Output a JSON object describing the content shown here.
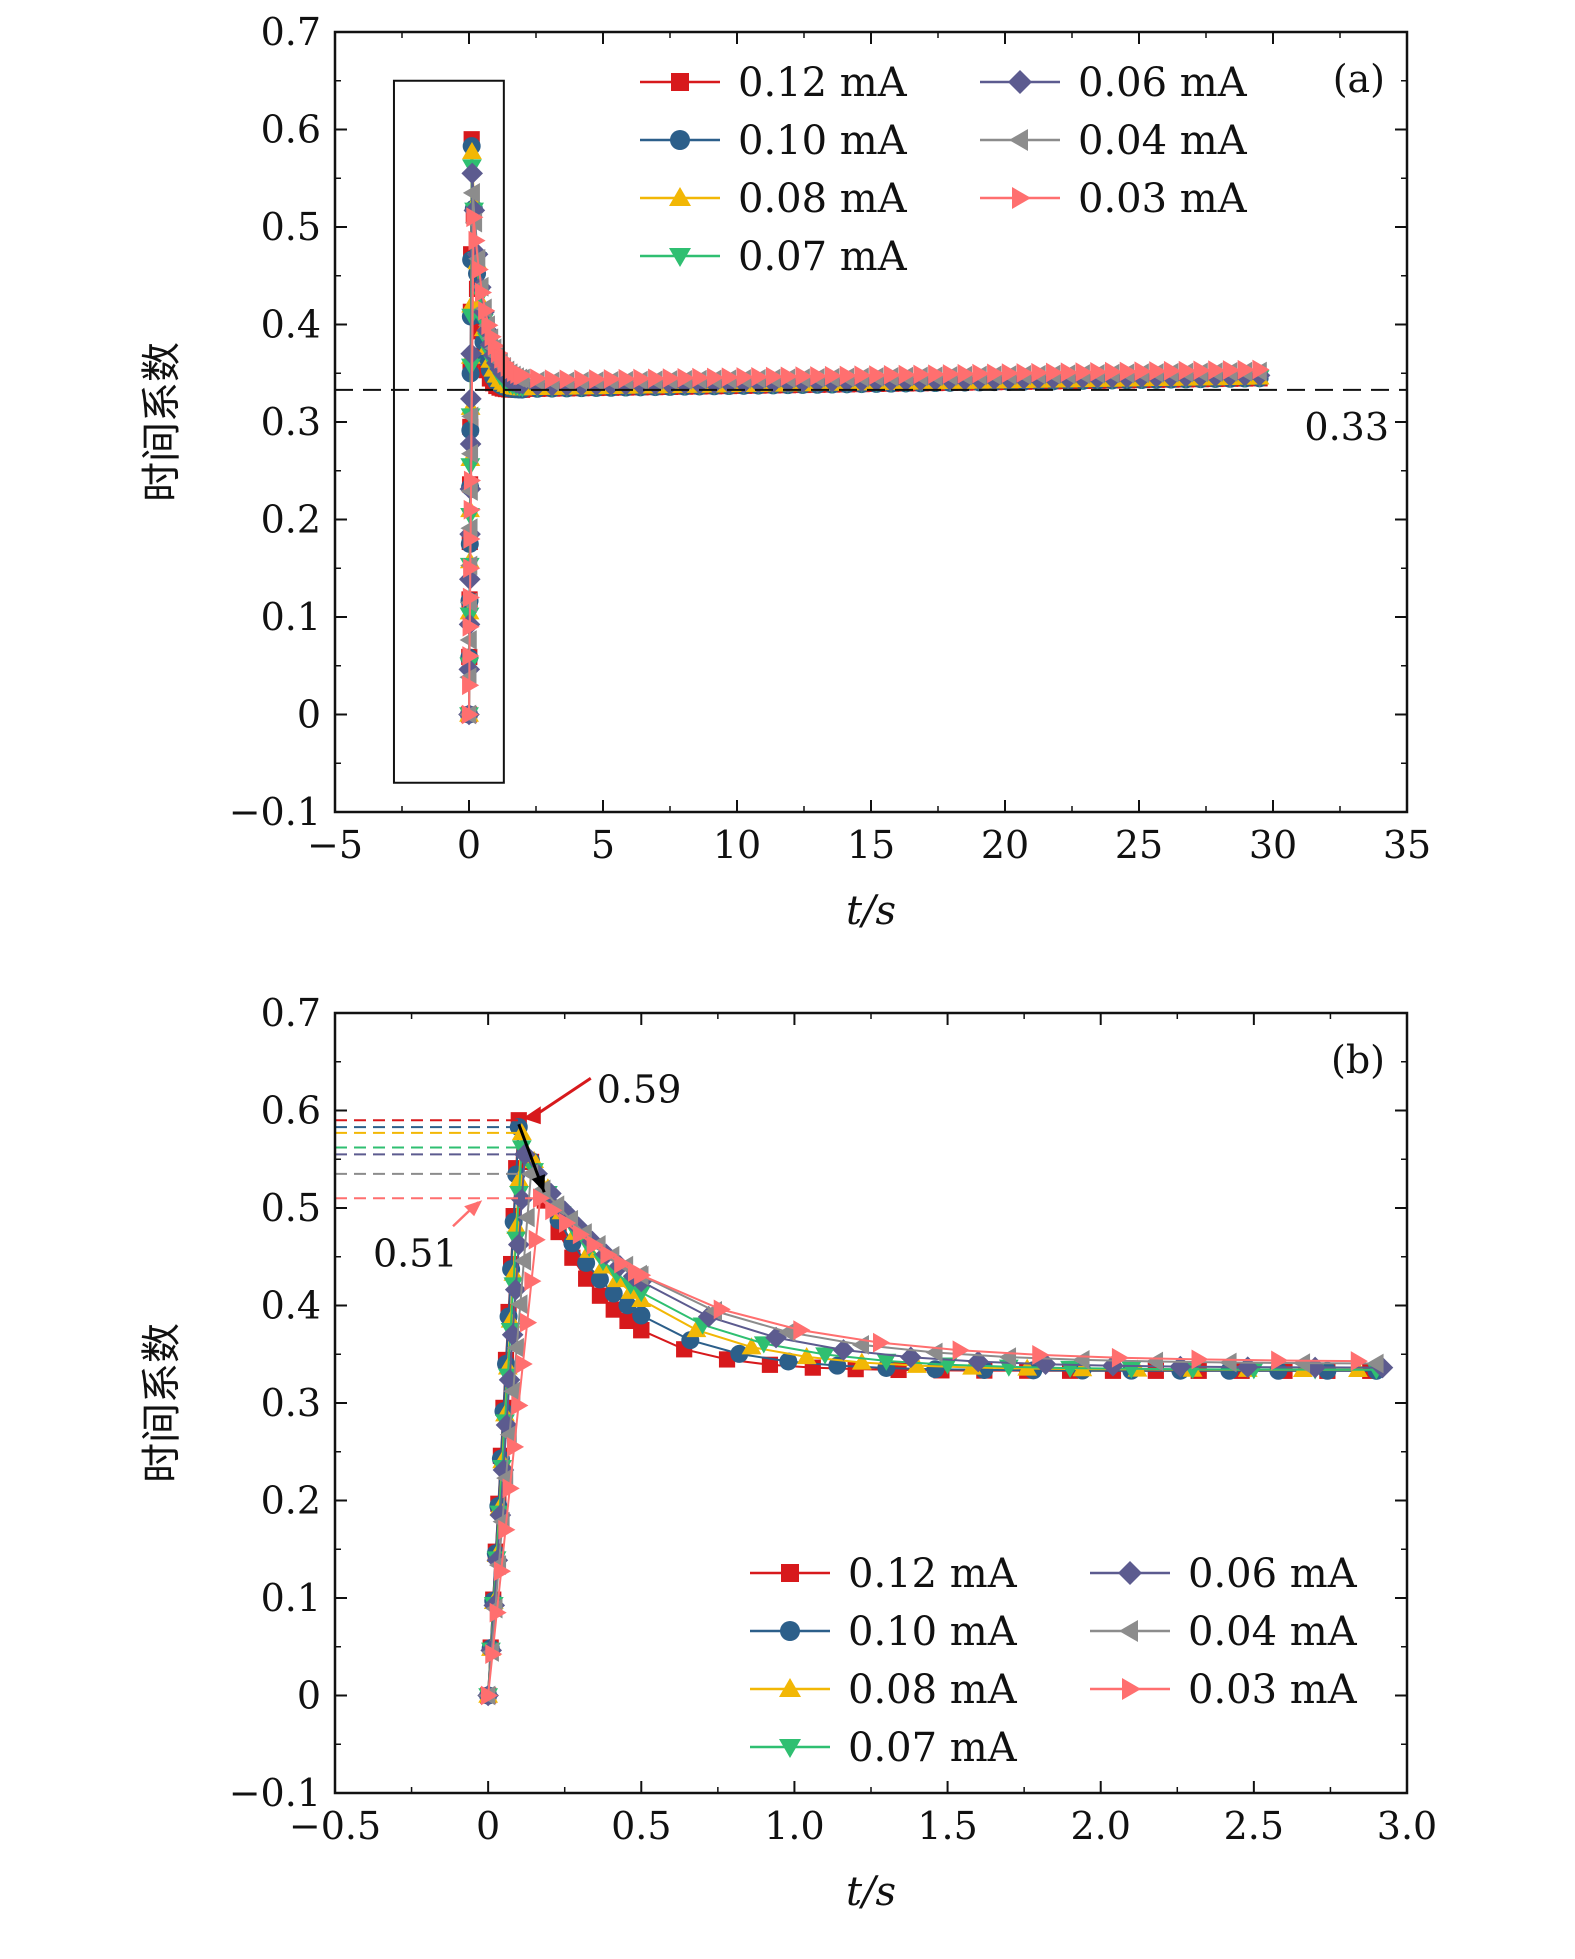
{
  "chart_data": [
    {
      "type": "line",
      "panel_label": "(a)",
      "xlabel": "t/s",
      "ylabel": "时间系数",
      "xlim": [
        -5,
        35
      ],
      "ylim": [
        -0.1,
        0.7
      ],
      "xticks": [
        -5,
        0,
        5,
        10,
        15,
        20,
        25,
        30,
        35
      ],
      "xtick_labels": [
        "−5",
        "0",
        "5",
        "10",
        "15",
        "20",
        "25",
        "30",
        "35"
      ],
      "yticks": [
        -0.1,
        0,
        0.1,
        0.2,
        0.3,
        0.4,
        0.5,
        0.6,
        0.7
      ],
      "ytick_labels": [
        "−0.1",
        "0",
        "0.1",
        "0.2",
        "0.3",
        "0.4",
        "0.5",
        "0.6",
        "0.7"
      ],
      "legend_position": "top-right",
      "legend_columns": 2,
      "reference_line": {
        "y": 0.333,
        "label": "0.33",
        "style": "dashed"
      },
      "highlight_box": {
        "x": [
          -2.8,
          1.3
        ],
        "y": [
          -0.07,
          0.65
        ]
      },
      "series": [
        {
          "name": "0.12 mA",
          "color": "#d7191c",
          "marker": "square",
          "peak": 0.59,
          "peak_t": 0.1,
          "plateau": 0.333
        },
        {
          "name": "0.10 mA",
          "color": "#2c5f8a",
          "marker": "circle",
          "peak": 0.583,
          "peak_t": 0.1,
          "plateau": 0.333
        },
        {
          "name": "0.08 mA",
          "color": "#f2b705",
          "marker": "triangle-up",
          "peak": 0.577,
          "peak_t": 0.11,
          "plateau": 0.334
        },
        {
          "name": "0.07 mA",
          "color": "#2fbf71",
          "marker": "triangle-down",
          "peak": 0.562,
          "peak_t": 0.11,
          "plateau": 0.334
        },
        {
          "name": "0.06 mA",
          "color": "#5c5b8f",
          "marker": "diamond",
          "peak": 0.555,
          "peak_t": 0.12,
          "plateau": 0.336
        },
        {
          "name": "0.04 mA",
          "color": "#8c8c8c",
          "marker": "triangle-left",
          "peak": 0.535,
          "peak_t": 0.14,
          "plateau": 0.34
        },
        {
          "name": "0.03 mA",
          "color": "#ff6f6f",
          "marker": "triangle-right",
          "peak": 0.51,
          "peak_t": 0.17,
          "plateau": 0.342
        }
      ]
    },
    {
      "type": "line",
      "panel_label": "(b)",
      "xlabel": "t/s",
      "ylabel": "时间系数",
      "xlim": [
        -0.5,
        3.0
      ],
      "ylim": [
        -0.1,
        0.7
      ],
      "xticks": [
        -0.5,
        0,
        0.5,
        1.0,
        1.5,
        2.0,
        2.5,
        3.0
      ],
      "xtick_labels": [
        "−0.5",
        "0",
        "0.5",
        "1.0",
        "1.5",
        "2.0",
        "2.5",
        "3.0"
      ],
      "yticks": [
        -0.1,
        0,
        0.1,
        0.2,
        0.3,
        0.4,
        0.5,
        0.6,
        0.7
      ],
      "ytick_labels": [
        "−0.1",
        "0",
        "0.1",
        "0.2",
        "0.3",
        "0.4",
        "0.5",
        "0.6",
        "0.7"
      ],
      "legend_position": "bottom-right",
      "legend_columns": 2,
      "annotations": [
        {
          "text": "0.59",
          "value": 0.59
        },
        {
          "text": "0.51",
          "value": 0.51
        }
      ],
      "series": [
        {
          "name": "0.12 mA",
          "color": "#d7191c",
          "marker": "square",
          "peak": 0.59,
          "peak_t": 0.1,
          "plateau": 0.333
        },
        {
          "name": "0.10 mA",
          "color": "#2c5f8a",
          "marker": "circle",
          "peak": 0.583,
          "peak_t": 0.1,
          "plateau": 0.333
        },
        {
          "name": "0.08 mA",
          "color": "#f2b705",
          "marker": "triangle-up",
          "peak": 0.577,
          "peak_t": 0.11,
          "plateau": 0.334
        },
        {
          "name": "0.07 mA",
          "color": "#2fbf71",
          "marker": "triangle-down",
          "peak": 0.562,
          "peak_t": 0.11,
          "plateau": 0.334
        },
        {
          "name": "0.06 mA",
          "color": "#5c5b8f",
          "marker": "diamond",
          "peak": 0.555,
          "peak_t": 0.12,
          "plateau": 0.336
        },
        {
          "name": "0.04 mA",
          "color": "#8c8c8c",
          "marker": "triangle-left",
          "peak": 0.535,
          "peak_t": 0.14,
          "plateau": 0.34
        },
        {
          "name": "0.03 mA",
          "color": "#ff6f6f",
          "marker": "triangle-right",
          "peak": 0.51,
          "peak_t": 0.17,
          "plateau": 0.342
        }
      ]
    }
  ]
}
